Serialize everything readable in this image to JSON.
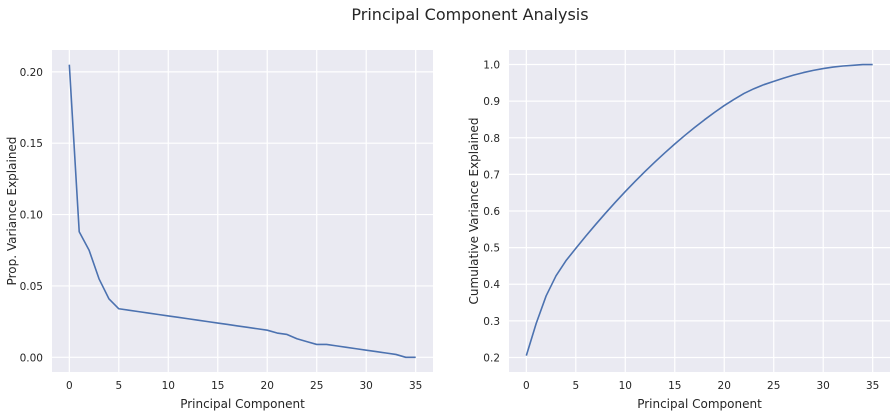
{
  "figure": {
    "title": "Principal Component Analysis",
    "style": {
      "background": "#ffffff",
      "axes_facecolor": "#eaeaf2",
      "grid_color": "#ffffff",
      "line_color": "#4c72b0",
      "text_color": "#262626"
    }
  },
  "chart_data": [
    {
      "type": "line",
      "title": "",
      "xlabel": "Principal Component",
      "ylabel": "Prop. Variance Explained",
      "xlim": [
        -1.75,
        36.75
      ],
      "ylim": [
        -0.0103,
        0.2153
      ],
      "grid": true,
      "xticks": [
        0,
        5,
        10,
        15,
        20,
        25,
        30,
        35
      ],
      "xtick_labels": [
        "0",
        "5",
        "10",
        "15",
        "20",
        "25",
        "30",
        "35"
      ],
      "yticks": [
        0.0,
        0.05,
        0.1,
        0.15,
        0.2
      ],
      "ytick_labels": [
        "0.00",
        "0.05",
        "0.10",
        "0.15",
        "0.20"
      ],
      "series": [
        {
          "x": [
            0,
            1,
            2,
            3,
            4,
            5,
            6,
            7,
            8,
            9,
            10,
            11,
            12,
            13,
            14,
            15,
            16,
            17,
            18,
            19,
            20,
            21,
            22,
            23,
            24,
            25,
            26,
            27,
            28,
            29,
            30,
            31,
            32,
            33,
            34,
            35
          ],
          "values": [
            0.205,
            0.088,
            0.075,
            0.055,
            0.041,
            0.034,
            0.033,
            0.032,
            0.031,
            0.03,
            0.029,
            0.028,
            0.027,
            0.026,
            0.025,
            0.024,
            0.023,
            0.022,
            0.021,
            0.02,
            0.019,
            0.017,
            0.016,
            0.013,
            0.011,
            0.009,
            0.009,
            0.008,
            0.007,
            0.006,
            0.005,
            0.004,
            0.003,
            0.002,
            0.0,
            0.0
          ]
        }
      ]
    },
    {
      "type": "line",
      "title": "",
      "xlabel": "Principal Component",
      "ylabel": "Cumulative Variance Explained",
      "xlim": [
        -1.75,
        36.75
      ],
      "ylim": [
        0.1603,
        1.0397
      ],
      "grid": true,
      "xticks": [
        0,
        5,
        10,
        15,
        20,
        25,
        30,
        35
      ],
      "xtick_labels": [
        "0",
        "5",
        "10",
        "15",
        "20",
        "25",
        "30",
        "35"
      ],
      "yticks": [
        0.2,
        0.3,
        0.4,
        0.5,
        0.6,
        0.7,
        0.8,
        0.9,
        1.0
      ],
      "ytick_labels": [
        "0.2",
        "0.3",
        "0.4",
        "0.5",
        "0.6",
        "0.7",
        "0.8",
        "0.9",
        "1.0"
      ],
      "series": [
        {
          "x": [
            0,
            1,
            2,
            3,
            4,
            5,
            6,
            7,
            8,
            9,
            10,
            11,
            12,
            13,
            14,
            15,
            16,
            17,
            18,
            19,
            20,
            21,
            22,
            23,
            24,
            25,
            26,
            27,
            28,
            29,
            30,
            31,
            32,
            33,
            34,
            35
          ],
          "values": [
            0.205,
            0.293,
            0.368,
            0.423,
            0.464,
            0.498,
            0.531,
            0.563,
            0.594,
            0.624,
            0.653,
            0.681,
            0.708,
            0.734,
            0.759,
            0.783,
            0.806,
            0.828,
            0.849,
            0.869,
            0.888,
            0.905,
            0.921,
            0.934,
            0.945,
            0.954,
            0.963,
            0.971,
            0.978,
            0.984,
            0.989,
            0.993,
            0.996,
            0.998,
            1.0,
            1.0
          ]
        }
      ]
    }
  ]
}
